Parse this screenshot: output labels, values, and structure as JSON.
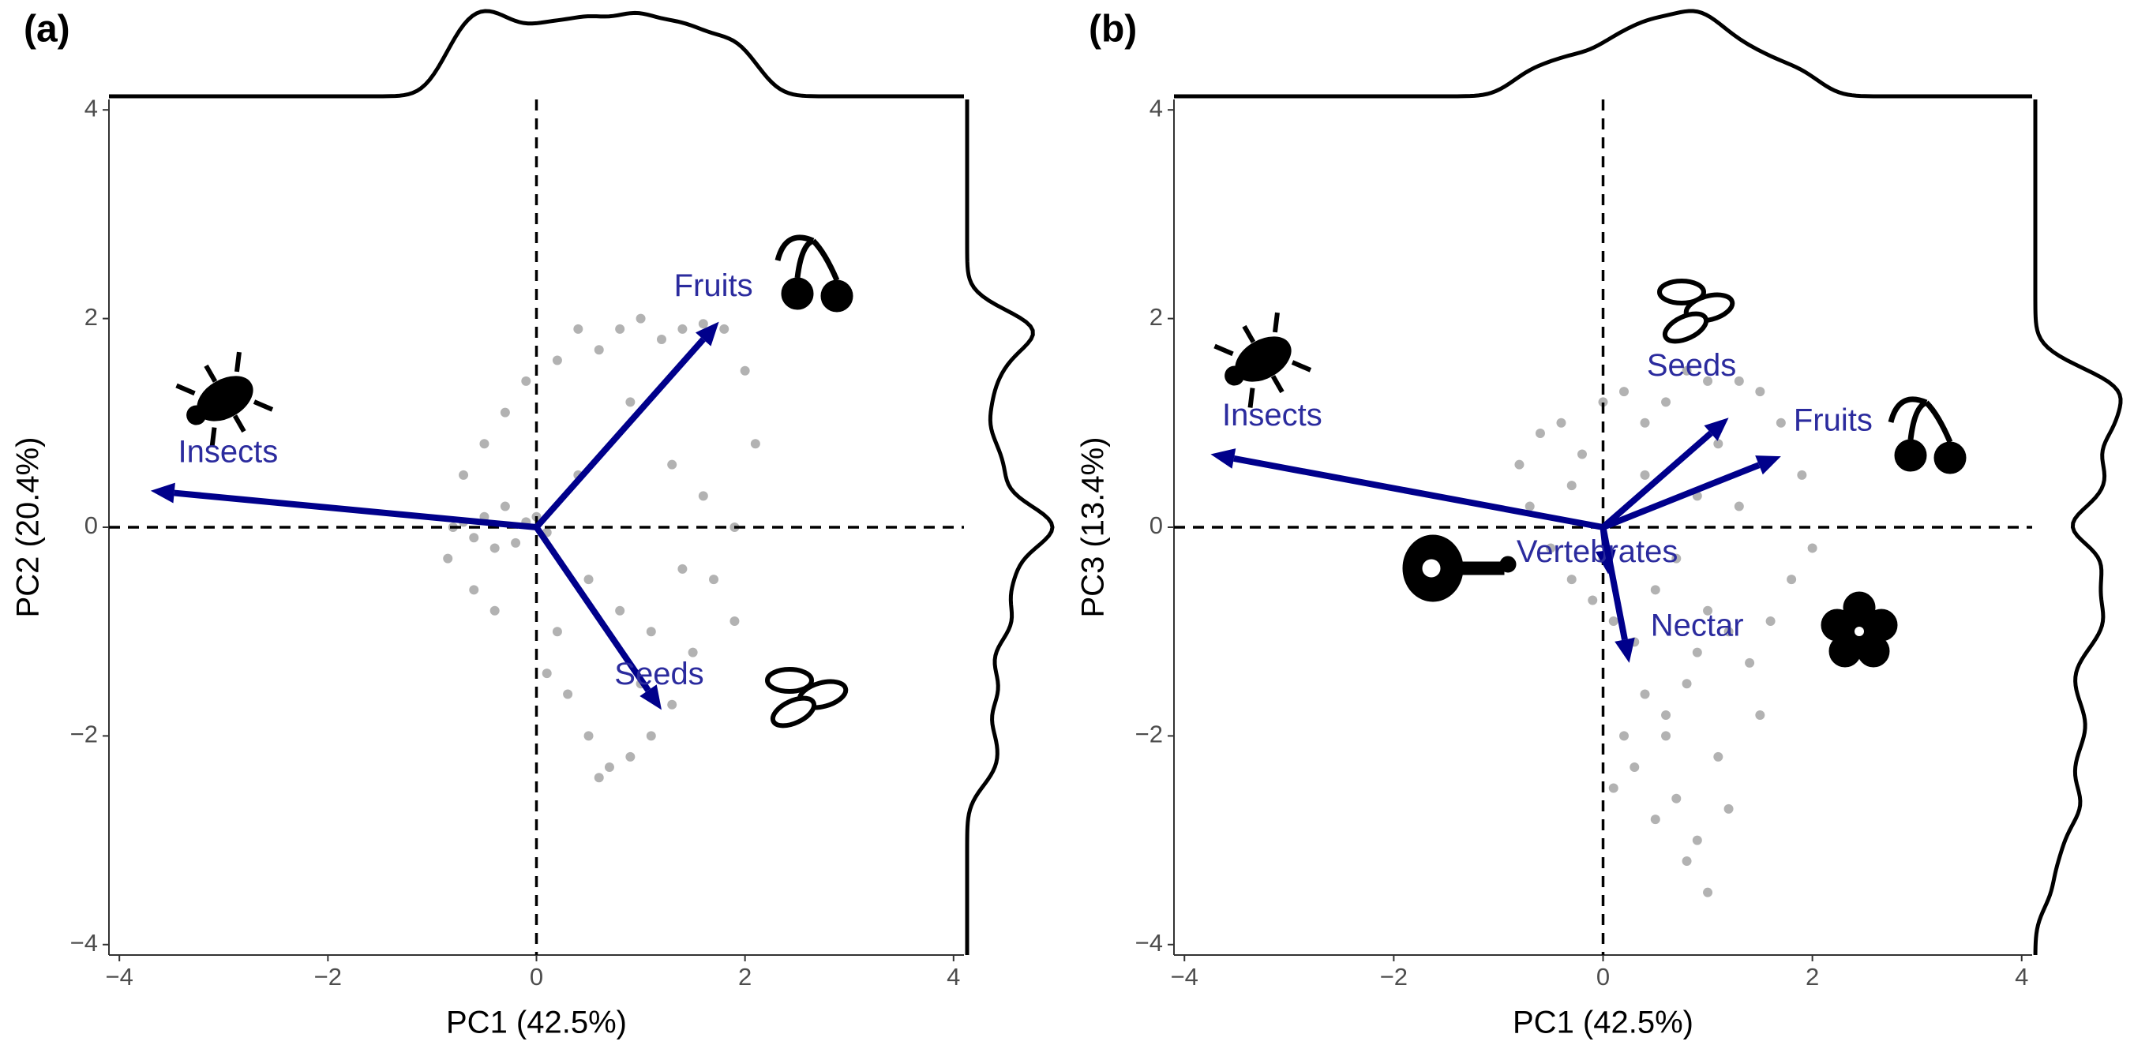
{
  "chart_data": [
    {
      "type": "biplot",
      "panel_label": "(a)",
      "xlabel": "PC1 (42.5%)",
      "ylabel": "PC2 (20.4%)",
      "xlim": [
        -4.1,
        4.1
      ],
      "ylim": [
        -4.1,
        4.1
      ],
      "xticks": [
        {
          "value": -4,
          "label": "−4"
        },
        {
          "value": -2,
          "label": "−2"
        },
        0,
        2,
        4
      ],
      "yticks": [
        {
          "value": -4,
          "label": "−4"
        },
        {
          "value": -2,
          "label": "−2"
        },
        0,
        2,
        4
      ],
      "points": {
        "color": "#000000",
        "x": [
          -0.8,
          -0.7,
          -0.6,
          -0.5,
          -0.4,
          -0.3,
          -0.2,
          -0.1,
          0,
          0.1,
          -0.85,
          -0.7,
          -0.5,
          -0.3,
          -0.1,
          0.2,
          0.4,
          0.6,
          0.8,
          1.0,
          1.2,
          1.4,
          1.6,
          1.8,
          2.0,
          2.1,
          1.9,
          1.7,
          1.5,
          1.3,
          1.1,
          0.9,
          0.7,
          0.5,
          0.3,
          0.2,
          0.5,
          0.8,
          1.1,
          1.4,
          1.6,
          1.9,
          0.4,
          0.9,
          1.3,
          -0.6,
          -0.4,
          0.1,
          0.6,
          1.0
        ],
        "y": [
          0,
          0.05,
          -0.1,
          0.1,
          -0.2,
          0.2,
          -0.15,
          0.05,
          0.1,
          -0.05,
          -0.3,
          0.5,
          0.8,
          1.1,
          1.4,
          1.6,
          1.9,
          1.7,
          1.9,
          2.0,
          1.8,
          1.9,
          1.95,
          1.9,
          1.5,
          0.8,
          0,
          -0.5,
          -1.2,
          -1.7,
          -2.0,
          -2.2,
          -2.3,
          -2.0,
          -1.6,
          -1.0,
          -0.5,
          -0.8,
          -1.0,
          -0.4,
          0.3,
          -0.9,
          0.5,
          1.2,
          0.6,
          -0.6,
          -0.8,
          -1.4,
          -2.4,
          -1.5
        ]
      },
      "arrows": {
        "color": "#00008b",
        "names": [
          "Insects",
          "Fruits",
          "Seeds"
        ],
        "x": [
          -3.7,
          1.75,
          1.2
        ],
        "y": [
          0.35,
          1.97,
          -1.75
        ]
      }
    },
    {
      "type": "biplot",
      "panel_label": "(b)",
      "xlabel": "PC1 (42.5%)",
      "ylabel": "PC3 (13.4%)",
      "xlim": [
        -4.1,
        4.1
      ],
      "ylim": [
        -4.1,
        4.1
      ],
      "xticks": [
        {
          "value": -4,
          "label": "−4"
        },
        {
          "value": -2,
          "label": "−2"
        },
        0,
        2,
        4
      ],
      "yticks": [
        {
          "value": -4,
          "label": "−4"
        },
        {
          "value": -2,
          "label": "−2"
        },
        0,
        2,
        4
      ],
      "points": {
        "color": "#000000",
        "x": [
          -0.8,
          -0.6,
          -0.4,
          -0.2,
          0,
          0.2,
          0.4,
          0.6,
          0.8,
          1.0,
          -0.7,
          -0.5,
          -0.3,
          -0.1,
          0.1,
          0.3,
          0.5,
          0.7,
          0.9,
          1.1,
          1.3,
          1.5,
          1.7,
          1.9,
          2.0,
          1.8,
          1.6,
          1.4,
          1.2,
          1.0,
          0.8,
          0.6,
          0.4,
          0.2,
          0.1,
          0.3,
          0.5,
          0.7,
          0.9,
          1.1,
          0.6,
          0.8,
          1.0,
          1.2,
          0.9,
          -0.3,
          0,
          0.4,
          1.3,
          1.5
        ],
        "y": [
          0.6,
          0.9,
          1.0,
          0.7,
          1.2,
          1.3,
          1.0,
          1.2,
          1.5,
          1.4,
          0.2,
          -0.2,
          -0.5,
          -0.7,
          -0.9,
          -1.1,
          -0.6,
          -0.3,
          0.3,
          0.8,
          1.4,
          1.3,
          1.0,
          0.5,
          -0.2,
          -0.5,
          -0.9,
          -1.3,
          -1.0,
          -0.8,
          -1.5,
          -1.8,
          -1.6,
          -2.0,
          -2.5,
          -2.3,
          -2.8,
          -2.6,
          -3.0,
          -2.2,
          -2.0,
          -3.2,
          -3.5,
          -2.7,
          -1.2,
          0.4,
          -0.3,
          0.5,
          0.2,
          -1.8
        ]
      },
      "arrows": {
        "color": "#00008b",
        "names": [
          "Insects",
          "Seeds",
          "Fruits",
          "Vertebrates",
          "Nectar"
        ],
        "x": [
          -3.75,
          1.2,
          1.7,
          0.05,
          0.25
        ],
        "y": [
          0.7,
          1.05,
          0.68,
          -0.45,
          -1.3
        ]
      }
    }
  ]
}
